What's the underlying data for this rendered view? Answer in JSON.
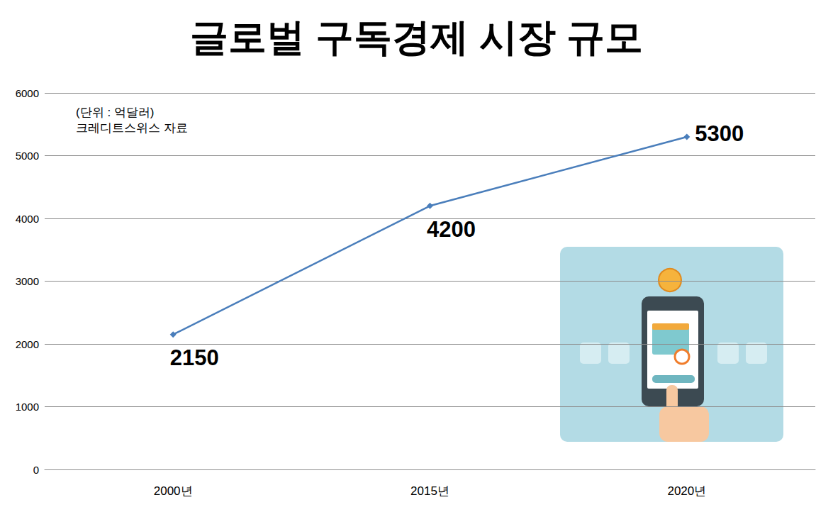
{
  "chart_data": {
    "type": "line",
    "title": "글로벌 구독경제 시장 규모",
    "annotations": [
      "(단위 : 억달러)",
      "크레디트스위스 자료"
    ],
    "categories": [
      "2000년",
      "2015년",
      "2020년"
    ],
    "values": [
      2150,
      4200,
      5300
    ],
    "color": "#4a7ebb",
    "marker": "diamond",
    "ylim": [
      0,
      6000
    ],
    "yticks": [
      0,
      1000,
      2000,
      3000,
      4000,
      5000,
      6000
    ],
    "grid": true,
    "data_labels": true
  }
}
